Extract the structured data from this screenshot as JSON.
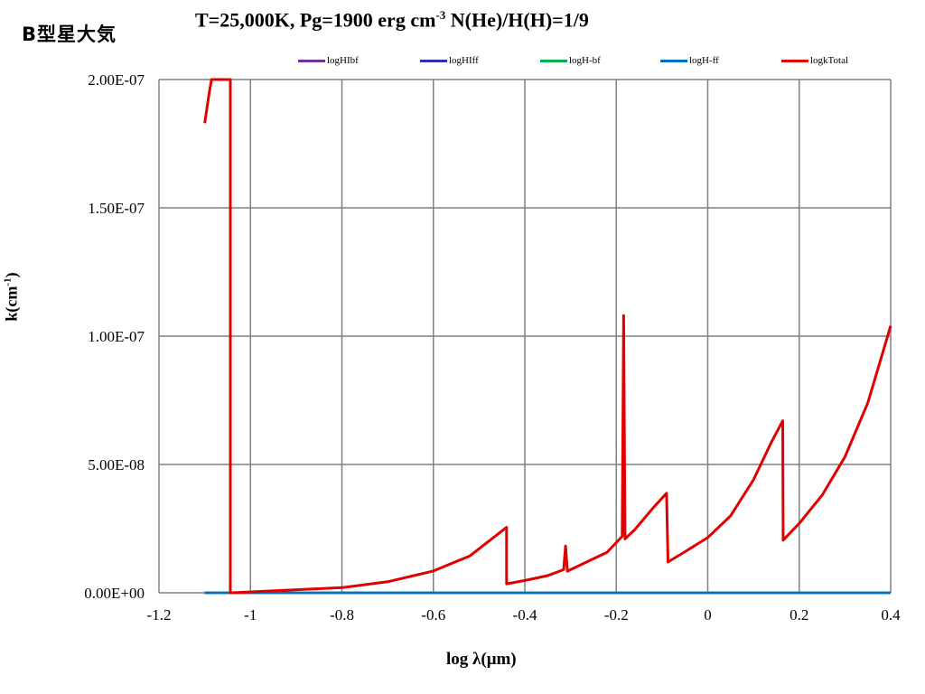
{
  "header": {
    "side_label": "B型星大気",
    "title_main": "T=25,000K, Pg=1900 erg cm",
    "title_exp": "-3",
    "title_rest": " N(He)/H(H)=1/9"
  },
  "colors": {
    "logHIbf": "#7030a0",
    "logHIff": "#3030b0",
    "logH-bf": "#00b050",
    "logH-ff": "#0070c0",
    "logkTotal": "#e00000",
    "grid": "#808080"
  },
  "chart_data": {
    "type": "line",
    "title": "T=25,000K, Pg=1900 erg cm-3 N(He)/H(H)=1/9",
    "xlabel": "log λ(μm)",
    "ylabel_main": "k(cm",
    "ylabel_exp": "-1",
    "ylabel_close": ")",
    "xlim": [
      -1.2,
      0.4
    ],
    "ylim": [
      0,
      2e-07
    ],
    "xticks": [
      -1.2,
      -1,
      -0.8,
      -0.6,
      -0.4,
      -0.2,
      0,
      0.2,
      0.4
    ],
    "xtick_labels": [
      "-1.2",
      "-1",
      "-0.8",
      "-0.6",
      "-0.4",
      "-0.2",
      "0",
      "0.2",
      "0.4"
    ],
    "yticks": [
      0,
      5e-08,
      1e-07,
      1.5e-07,
      2e-07
    ],
    "ytick_labels": [
      "0.00E+00",
      "5.00E-08",
      "1.00E-07",
      "1.50E-07",
      "2.00E-07"
    ],
    "grid": true,
    "legend_position": "top",
    "series": [
      {
        "name": "logHIbf",
        "x": [
          -1.1,
          0.4
        ],
        "y": [
          0,
          0
        ]
      },
      {
        "name": "logHIff",
        "x": [
          -1.1,
          0.4
        ],
        "y": [
          0,
          0
        ]
      },
      {
        "name": "logH-bf",
        "x": [
          -1.1,
          0.4
        ],
        "y": [
          0,
          0
        ]
      },
      {
        "name": "logH-ff",
        "x": [
          -1.1,
          0.4
        ],
        "y": [
          0,
          0
        ]
      },
      {
        "name": "logkTotal",
        "x": [
          -1.1,
          -1.09,
          -1.085,
          -1.045,
          -1.044,
          -1.044,
          -1.04,
          -0.9,
          -0.8,
          -0.7,
          -0.6,
          -0.52,
          -0.44,
          -0.44,
          -0.4,
          -0.35,
          -0.315,
          -0.311,
          -0.307,
          -0.3,
          -0.22,
          -0.187,
          -0.184,
          -0.181,
          -0.16,
          -0.12,
          -0.09,
          -0.087,
          -0.05,
          0,
          0.05,
          0.1,
          0.14,
          0.164,
          0.165,
          0.2,
          0.25,
          0.3,
          0.35,
          0.4
        ],
        "y": [
          1.83e-07,
          1.95e-07,
          2e-07,
          2e-07,
          2e-07,
          0,
          0,
          1.2e-09,
          2e-09,
          4.3e-09,
          8.5e-09,
          1.44e-08,
          2.55e-08,
          3.5e-09,
          4.8e-09,
          6.7e-09,
          9e-09,
          1.82e-08,
          8.4e-09,
          9e-09,
          1.58e-08,
          2.2e-08,
          1.08e-07,
          2.1e-08,
          2.45e-08,
          3.3e-08,
          3.88e-08,
          1.2e-08,
          1.6e-08,
          2.15e-08,
          3e-08,
          4.4e-08,
          5.9e-08,
          6.7e-08,
          2.05e-08,
          2.7e-08,
          3.8e-08,
          5.3e-08,
          7.4e-08,
          1.04e-07
        ]
      }
    ]
  }
}
